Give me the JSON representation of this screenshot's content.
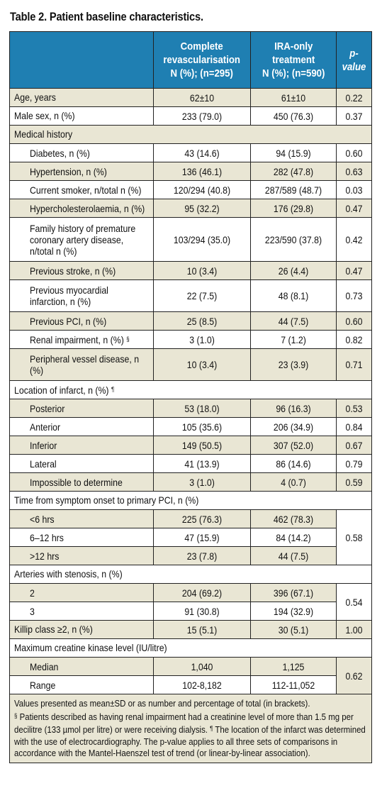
{
  "title": "Table 2. Patient baseline characteristics.",
  "header": {
    "col1": "Complete revascularisation N (%); (n=295)",
    "col1_l1": "Complete",
    "col1_l2": "revascularisation",
    "col1_l3": "N (%); (n=295)",
    "col2_l1": "IRA-only",
    "col2_l2": "treatment",
    "col2_l3": "N (%); (n=590)",
    "col3": "p-value"
  },
  "rows": {
    "age": {
      "label": "Age, years",
      "c1": "62±10",
      "c2": "61±10",
      "p": "0.22"
    },
    "male": {
      "label": "Male sex, n (%)",
      "c1": "233 (79.0)",
      "c2": "450 (76.3)",
      "p": "0.37"
    },
    "medhist": {
      "label": "Medical history"
    },
    "diabetes": {
      "label": "Diabetes, n (%)",
      "c1": "43 (14.6)",
      "c2": "94 (15.9)",
      "p": "0.60"
    },
    "htn": {
      "label": "Hypertension, n (%)",
      "c1": "136 (46.1)",
      "c2": "282 (47.8)",
      "p": "0.63"
    },
    "smoker": {
      "label": "Current smoker, n/total n (%)",
      "c1": "120/294 (40.8)",
      "c2": "287/589 (48.7)",
      "p": "0.03"
    },
    "chol": {
      "label": "Hypercholesterolaemia, n (%)",
      "c1": "95 (32.2)",
      "c2": "176 (29.8)",
      "p": "0.47"
    },
    "famhist": {
      "label": "Family history of premature coronary artery disease, n/total n (%)",
      "c1": "103/294 (35.0)",
      "c2": "223/590 (37.8)",
      "p": "0.42"
    },
    "stroke": {
      "label": "Previous stroke, n (%)",
      "c1": "10 (3.4)",
      "c2": "26 (4.4)",
      "p": "0.47"
    },
    "mi": {
      "label": "Previous myocardial infarction, n (%)",
      "c1": "22 (7.5)",
      "c2": "48 (8.1)",
      "p": "0.73"
    },
    "pci": {
      "label": "Previous PCI, n (%)",
      "c1": "25 (8.5)",
      "c2": "44 (7.5)",
      "p": "0.60"
    },
    "renal": {
      "label": "Renal impairment, n (%)",
      "mark": "§",
      "c1": "3 (1.0)",
      "c2": "7 (1.2)",
      "p": "0.82"
    },
    "pvd": {
      "label": "Peripheral vessel disease, n (%)",
      "c1": "10 (3.4)",
      "c2": "23 (3.9)",
      "p": "0.71"
    },
    "loc": {
      "label": "Location of infarct, n (%)",
      "mark": "¶"
    },
    "posterior": {
      "label": "Posterior",
      "c1": "53 (18.0)",
      "c2": "96 (16.3)",
      "p": "0.53"
    },
    "anterior": {
      "label": "Anterior",
      "c1": "105 (35.6)",
      "c2": "206 (34.9)",
      "p": "0.84"
    },
    "inferior": {
      "label": "Inferior",
      "c1": "149 (50.5)",
      "c2": "307 (52.0)",
      "p": "0.67"
    },
    "lateral": {
      "label": "Lateral",
      "c1": "41 (13.9)",
      "c2": "86 (14.6)",
      "p": "0.79"
    },
    "impossible": {
      "label": "Impossible to determine",
      "c1": "3 (1.0)",
      "c2": "4 (0.7)",
      "p": "0.59"
    },
    "time": {
      "label": "Time from symptom onset to primary PCI, n (%)"
    },
    "lt6": {
      "label": "<6 hrs",
      "c1": "225 (76.3)",
      "c2": "462 (78.3)"
    },
    "t612": {
      "label": "6–12 hrs",
      "c1": "47 (15.9)",
      "c2": "84 (14.2)"
    },
    "gt12": {
      "label": ">12 hrs",
      "c1": "23 (7.8)",
      "c2": "44 (7.5)"
    },
    "time_p": "0.58",
    "arteries": {
      "label": "Arteries with stenosis, n (%)"
    },
    "a2": {
      "label": "2",
      "c1": "204 (69.2)",
      "c2": "396 (67.1)"
    },
    "a3": {
      "label": "3",
      "c1": "91 (30.8)",
      "c2": "194 (32.9)"
    },
    "arteries_p": "0.54",
    "killip": {
      "label": "Killip class ≥2, n (%)",
      "c1": "15 (5.1)",
      "c2": "30 (5.1)",
      "p": "1.00"
    },
    "ck": {
      "label": "Maximum creatine kinase level (IU/litre)"
    },
    "median": {
      "label": "Median",
      "c1": "1,040",
      "c2": "1,125"
    },
    "range": {
      "label": "Range",
      "c1": "102-8,182",
      "c2": "112-11,052"
    },
    "ck_p": "0.62"
  },
  "footnote": {
    "line1": "Values presented as mean±SD or as number and percentage of total (in brackets).",
    "mark1": "§",
    "text1": " Patients described as having renal impairment had a creatinine level of more than 1.5 mg per decilitre (133 µmol per litre) or were receiving dialysis. ",
    "mark2": "¶",
    "text2": " The location of the infarct was determined with the use of electrocardiography. The p-value applies to all three sets of comparisons in accordance with the Mantel-Haenszel test of trend (or linear-by-linear association)."
  },
  "colors": {
    "header_bg": "#1f7fb2",
    "shade": "#e9e6d4",
    "border": "#222222"
  }
}
